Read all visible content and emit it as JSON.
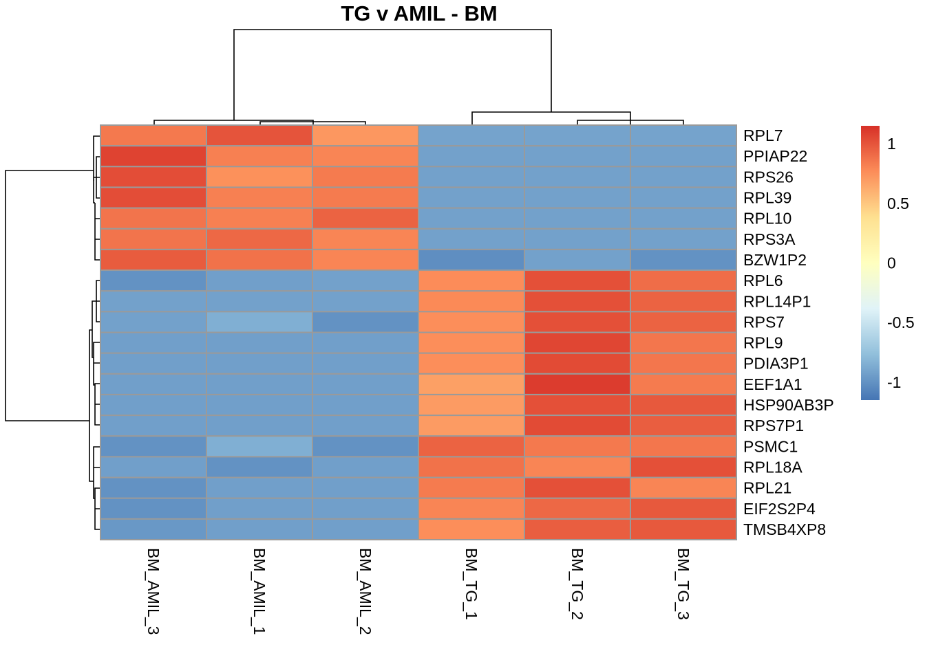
{
  "chart_data": {
    "type": "heatmap",
    "title": "TG v AMIL - BM",
    "columns": [
      "BM_AMIL_3",
      "BM_AMIL_1",
      "BM_AMIL_2",
      "BM_TG_1",
      "BM_TG_2",
      "BM_TG_3"
    ],
    "rows": [
      "RPL7",
      "PPIAP22",
      "RPS26",
      "RPL39",
      "RPL10",
      "RPS3A",
      "BZW1P2",
      "RPL6",
      "RPL14P1",
      "RPS7",
      "RPL9",
      "PDIA3P1",
      "EEF1A1",
      "HSP90AB3P",
      "RPS7P1",
      "PSMC1",
      "RPL18A",
      "RPL21",
      "EIF2S2P4",
      "TMSB4XP8"
    ],
    "values": [
      [
        0.85,
        1.0,
        0.72,
        -0.91,
        -0.91,
        -0.91
      ],
      [
        1.07,
        0.82,
        0.8,
        -0.92,
        -0.92,
        -0.92
      ],
      [
        1.03,
        0.75,
        0.84,
        -0.92,
        -0.92,
        -0.92
      ],
      [
        1.03,
        0.82,
        0.84,
        -0.92,
        -0.92,
        -0.92
      ],
      [
        0.87,
        0.82,
        0.94,
        -0.92,
        -0.92,
        -0.92
      ],
      [
        0.87,
        0.92,
        0.8,
        -0.92,
        -0.92,
        -0.92
      ],
      [
        0.97,
        0.88,
        0.8,
        -1.02,
        -0.92,
        -1.0
      ],
      [
        -1.0,
        -0.93,
        -0.92,
        0.77,
        1.02,
        0.9
      ],
      [
        -0.92,
        -0.92,
        -0.92,
        0.78,
        1.02,
        0.94
      ],
      [
        -0.92,
        -0.85,
        -1.0,
        0.76,
        1.02,
        0.94
      ],
      [
        -0.93,
        -0.93,
        -0.93,
        0.76,
        1.06,
        0.86
      ],
      [
        -0.93,
        -0.93,
        -0.93,
        0.76,
        1.04,
        0.86
      ],
      [
        -0.93,
        -0.93,
        -0.93,
        0.68,
        1.1,
        0.84
      ],
      [
        -0.93,
        -0.93,
        -0.93,
        0.7,
        1.02,
        0.98
      ],
      [
        -0.93,
        -0.93,
        -0.93,
        0.7,
        1.04,
        0.96
      ],
      [
        -1.0,
        -0.85,
        -1.0,
        0.94,
        0.85,
        0.86
      ],
      [
        -0.93,
        -1.0,
        -0.93,
        0.88,
        0.8,
        1.02
      ],
      [
        -1.0,
        -0.93,
        -0.93,
        0.84,
        1.02,
        0.8
      ],
      [
        -1.0,
        -0.93,
        -0.93,
        0.8,
        0.92,
        0.98
      ],
      [
        -0.97,
        -0.93,
        -0.93,
        0.76,
        0.96,
        0.98
      ]
    ],
    "color_scale": [
      "#4575B4",
      "#91BFDB",
      "#E0F3F8",
      "#FFFFBF",
      "#FEE090",
      "#FC8D59",
      "#D73027"
    ],
    "legend": {
      "ticks": [
        1,
        0.5,
        0,
        -0.5,
        -1
      ],
      "tick_labels": [
        "1",
        "0.5",
        "0",
        "-0.5",
        "-1"
      ],
      "range": [
        -1.15,
        1.15
      ]
    },
    "column_dendrogram": true,
    "row_dendrogram": true
  }
}
